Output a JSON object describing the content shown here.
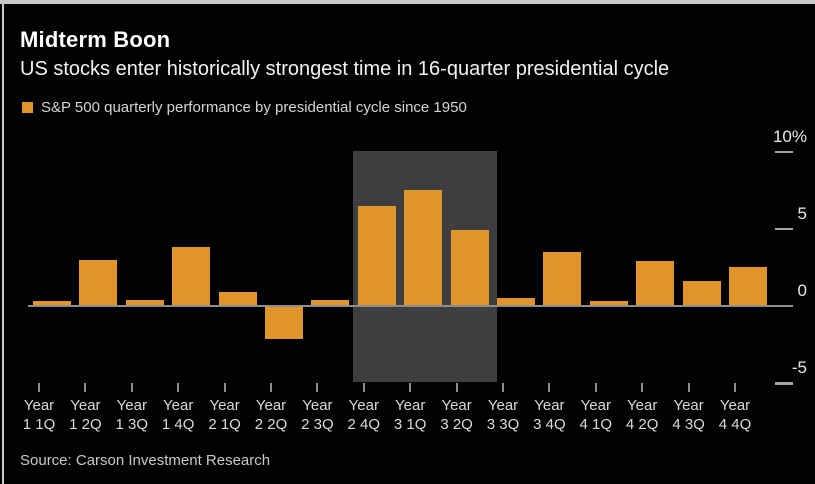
{
  "header": {
    "title": "Midterm Boon",
    "subtitle": "US stocks enter historically strongest time in 16-quarter presidential cycle"
  },
  "legend": {
    "swatch_color": "#e0942c",
    "label": "S&P 500 quarterly performance by presidential cycle since 1950"
  },
  "chart_data": {
    "type": "bar",
    "title": "Midterm Boon",
    "subtitle": "US stocks enter historically strongest time in 16-quarter presidential cycle",
    "series_name": "S&P 500 quarterly performance by presidential cycle since 1950",
    "category_prefix": "Year",
    "categories": [
      "1 1Q",
      "1 2Q",
      "1 3Q",
      "1 4Q",
      "2 1Q",
      "2 2Q",
      "2 3Q",
      "2 4Q",
      "3 1Q",
      "3 2Q",
      "3 3Q",
      "3 4Q",
      "4 1Q",
      "4 2Q",
      "4 3Q",
      "4 4Q"
    ],
    "values": [
      0.3,
      3.0,
      0.4,
      3.8,
      0.9,
      -2.1,
      0.4,
      6.5,
      7.5,
      4.9,
      0.5,
      3.5,
      0.3,
      2.9,
      1.6,
      2.5
    ],
    "xlabel": "",
    "ylabel": "%",
    "ylim": [
      -5,
      10
    ],
    "yticks": [
      {
        "value": 10,
        "label": "10%"
      },
      {
        "value": 5,
        "label": "5"
      },
      {
        "value": 0,
        "label": "0"
      },
      {
        "value": -5,
        "label": "-5"
      }
    ],
    "yaxis_side": "right",
    "grid": false,
    "legend_position": "top-left",
    "highlight_band": {
      "from_category": "2 4Q",
      "to_category": "3 2Q",
      "color": "#3e3e40"
    },
    "bar_color": "#e0942c",
    "background_color": "#000000"
  },
  "footer": {
    "source": "Source: Carson Investment Research"
  }
}
